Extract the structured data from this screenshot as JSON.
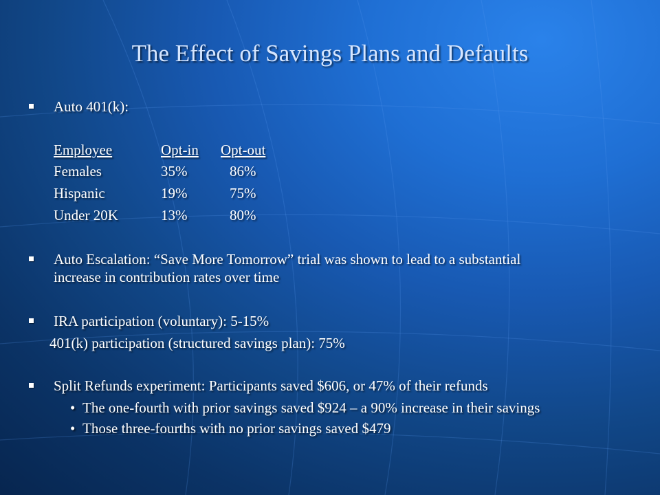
{
  "slide": {
    "title": "The Effect of Savings Plans and Defaults",
    "auto401k": {
      "label": "Auto 401(k):",
      "headers": [
        "Employee",
        "Opt-in",
        "Opt-out"
      ],
      "rows": [
        [
          "Females",
          "35%",
          "86%"
        ],
        [
          "Hispanic",
          "19%",
          "75%"
        ],
        [
          "Under 20K",
          "13%",
          "80%"
        ]
      ]
    },
    "escalation": {
      "line1": "Auto Escalation: “Save More Tomorrow” trial was shown to lead to a substantial",
      "line2": "increase in contribution rates over time"
    },
    "ira": {
      "line1": "IRA participation (voluntary): 5-15%",
      "line2": "401(k) participation (structured savings plan): 75%"
    },
    "split": {
      "main": "Split Refunds experiment: Participants saved $606, or 47% of their refunds",
      "sub1": "The one-fourth with prior savings saved $924 – a 90% increase in their savings",
      "sub2": "Those three-fourths with no prior savings saved $479"
    }
  }
}
